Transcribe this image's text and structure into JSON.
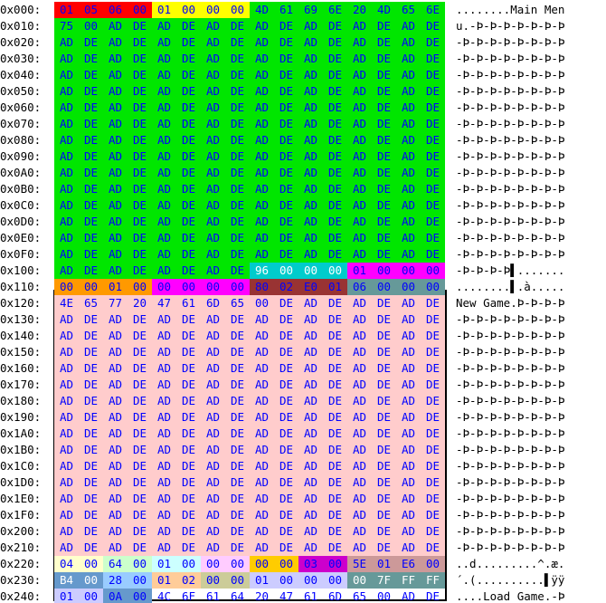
{
  "colors": {
    "green": "#00e600",
    "red": "#ff0000",
    "yellow": "#ffff00",
    "orange": "#ff9900",
    "teal": "#00cccc",
    "magenta": "#ff00ff",
    "brown": "#993333",
    "slate": "#669999",
    "pink": "#ffcccc",
    "lightyellow": "#ffffcc",
    "lightgreen": "#ccffcc",
    "lightcyan": "#ccffff",
    "lightpurple": "#ffccff",
    "gold": "#ffcc00",
    "purple": "#cc00cc",
    "mauve": "#cc9999",
    "periwinkle": "#99ccff",
    "steel": "#6699cc",
    "tan": "#ffcc99",
    "khaki": "#cccc99",
    "lavender": "#ccccff",
    "cadet": "#669999"
  },
  "rows": [
    {
      "addr": "0x000:",
      "bytes": [
        "01",
        "05",
        "06",
        "00",
        "01",
        "00",
        "00",
        "00",
        "4D",
        "61",
        "69",
        "6E",
        "20",
        "4D",
        "65",
        "6E"
      ],
      "ascii": "........Main Men"
    },
    {
      "addr": "0x010:",
      "bytes": [
        "75",
        "00",
        "AD",
        "DE",
        "AD",
        "DE",
        "AD",
        "DE",
        "AD",
        "DE",
        "AD",
        "DE",
        "AD",
        "DE",
        "AD",
        "DE"
      ],
      "ascii": "u.-Þ-Þ-Þ-Þ-Þ-Þ-Þ"
    },
    {
      "addr": "0x020:",
      "bytes": [
        "AD",
        "DE",
        "AD",
        "DE",
        "AD",
        "DE",
        "AD",
        "DE",
        "AD",
        "DE",
        "AD",
        "DE",
        "AD",
        "DE",
        "AD",
        "DE"
      ],
      "ascii": "-Þ-Þ-Þ-Þ-Þ-Þ-Þ-Þ"
    },
    {
      "addr": "0x030:",
      "bytes": [
        "AD",
        "DE",
        "AD",
        "DE",
        "AD",
        "DE",
        "AD",
        "DE",
        "AD",
        "DE",
        "AD",
        "DE",
        "AD",
        "DE",
        "AD",
        "DE"
      ],
      "ascii": "-Þ-Þ-Þ-Þ-Þ-Þ-Þ-Þ"
    },
    {
      "addr": "0x040:",
      "bytes": [
        "AD",
        "DE",
        "AD",
        "DE",
        "AD",
        "DE",
        "AD",
        "DE",
        "AD",
        "DE",
        "AD",
        "DE",
        "AD",
        "DE",
        "AD",
        "DE"
      ],
      "ascii": "-Þ-Þ-Þ-Þ-Þ-Þ-Þ-Þ"
    },
    {
      "addr": "0x050:",
      "bytes": [
        "AD",
        "DE",
        "AD",
        "DE",
        "AD",
        "DE",
        "AD",
        "DE",
        "AD",
        "DE",
        "AD",
        "DE",
        "AD",
        "DE",
        "AD",
        "DE"
      ],
      "ascii": "-Þ-Þ-Þ-Þ-Þ-Þ-Þ-Þ"
    },
    {
      "addr": "0x060:",
      "bytes": [
        "AD",
        "DE",
        "AD",
        "DE",
        "AD",
        "DE",
        "AD",
        "DE",
        "AD",
        "DE",
        "AD",
        "DE",
        "AD",
        "DE",
        "AD",
        "DE"
      ],
      "ascii": "-Þ-Þ-Þ-Þ-Þ-Þ-Þ-Þ"
    },
    {
      "addr": "0x070:",
      "bytes": [
        "AD",
        "DE",
        "AD",
        "DE",
        "AD",
        "DE",
        "AD",
        "DE",
        "AD",
        "DE",
        "AD",
        "DE",
        "AD",
        "DE",
        "AD",
        "DE"
      ],
      "ascii": "-Þ-Þ-Þ-Þ-Þ-Þ-Þ-Þ"
    },
    {
      "addr": "0x080:",
      "bytes": [
        "AD",
        "DE",
        "AD",
        "DE",
        "AD",
        "DE",
        "AD",
        "DE",
        "AD",
        "DE",
        "AD",
        "DE",
        "AD",
        "DE",
        "AD",
        "DE"
      ],
      "ascii": "-Þ-Þ-Þ-Þ-Þ-Þ-Þ-Þ"
    },
    {
      "addr": "0x090:",
      "bytes": [
        "AD",
        "DE",
        "AD",
        "DE",
        "AD",
        "DE",
        "AD",
        "DE",
        "AD",
        "DE",
        "AD",
        "DE",
        "AD",
        "DE",
        "AD",
        "DE"
      ],
      "ascii": "-Þ-Þ-Þ-Þ-Þ-Þ-Þ-Þ"
    },
    {
      "addr": "0x0A0:",
      "bytes": [
        "AD",
        "DE",
        "AD",
        "DE",
        "AD",
        "DE",
        "AD",
        "DE",
        "AD",
        "DE",
        "AD",
        "DE",
        "AD",
        "DE",
        "AD",
        "DE"
      ],
      "ascii": "-Þ-Þ-Þ-Þ-Þ-Þ-Þ-Þ"
    },
    {
      "addr": "0x0B0:",
      "bytes": [
        "AD",
        "DE",
        "AD",
        "DE",
        "AD",
        "DE",
        "AD",
        "DE",
        "AD",
        "DE",
        "AD",
        "DE",
        "AD",
        "DE",
        "AD",
        "DE"
      ],
      "ascii": "-Þ-Þ-Þ-Þ-Þ-Þ-Þ-Þ"
    },
    {
      "addr": "0x0C0:",
      "bytes": [
        "AD",
        "DE",
        "AD",
        "DE",
        "AD",
        "DE",
        "AD",
        "DE",
        "AD",
        "DE",
        "AD",
        "DE",
        "AD",
        "DE",
        "AD",
        "DE"
      ],
      "ascii": "-Þ-Þ-Þ-Þ-Þ-Þ-Þ-Þ"
    },
    {
      "addr": "0x0D0:",
      "bytes": [
        "AD",
        "DE",
        "AD",
        "DE",
        "AD",
        "DE",
        "AD",
        "DE",
        "AD",
        "DE",
        "AD",
        "DE",
        "AD",
        "DE",
        "AD",
        "DE"
      ],
      "ascii": "-Þ-Þ-Þ-Þ-Þ-Þ-Þ-Þ"
    },
    {
      "addr": "0x0E0:",
      "bytes": [
        "AD",
        "DE",
        "AD",
        "DE",
        "AD",
        "DE",
        "AD",
        "DE",
        "AD",
        "DE",
        "AD",
        "DE",
        "AD",
        "DE",
        "AD",
        "DE"
      ],
      "ascii": "-Þ-Þ-Þ-Þ-Þ-Þ-Þ-Þ"
    },
    {
      "addr": "0x0F0:",
      "bytes": [
        "AD",
        "DE",
        "AD",
        "DE",
        "AD",
        "DE",
        "AD",
        "DE",
        "AD",
        "DE",
        "AD",
        "DE",
        "AD",
        "DE",
        "AD",
        "DE"
      ],
      "ascii": "-Þ-Þ-Þ-Þ-Þ-Þ-Þ-Þ"
    },
    {
      "addr": "0x100:",
      "bytes": [
        "AD",
        "DE",
        "AD",
        "DE",
        "AD",
        "DE",
        "AD",
        "DE",
        "96",
        "00",
        "00",
        "00",
        "01",
        "00",
        "00",
        "00"
      ],
      "ascii": "-Þ-Þ-Þ-Þ▌......."
    },
    {
      "addr": "0x110:",
      "bytes": [
        "00",
        "00",
        "01",
        "00",
        "00",
        "00",
        "00",
        "00",
        "80",
        "02",
        "E0",
        "01",
        "06",
        "00",
        "00",
        "00"
      ],
      "ascii": "........▌.à....."
    },
    {
      "addr": "0x120:",
      "bytes": [
        "4E",
        "65",
        "77",
        "20",
        "47",
        "61",
        "6D",
        "65",
        "00",
        "DE",
        "AD",
        "DE",
        "AD",
        "DE",
        "AD",
        "DE"
      ],
      "ascii": "New Game.Þ-Þ-Þ-Þ"
    },
    {
      "addr": "0x130:",
      "bytes": [
        "AD",
        "DE",
        "AD",
        "DE",
        "AD",
        "DE",
        "AD",
        "DE",
        "AD",
        "DE",
        "AD",
        "DE",
        "AD",
        "DE",
        "AD",
        "DE"
      ],
      "ascii": "-Þ-Þ-Þ-Þ-Þ-Þ-Þ-Þ"
    },
    {
      "addr": "0x140:",
      "bytes": [
        "AD",
        "DE",
        "AD",
        "DE",
        "AD",
        "DE",
        "AD",
        "DE",
        "AD",
        "DE",
        "AD",
        "DE",
        "AD",
        "DE",
        "AD",
        "DE"
      ],
      "ascii": "-Þ-Þ-Þ-Þ-Þ-Þ-Þ-Þ"
    },
    {
      "addr": "0x150:",
      "bytes": [
        "AD",
        "DE",
        "AD",
        "DE",
        "AD",
        "DE",
        "AD",
        "DE",
        "AD",
        "DE",
        "AD",
        "DE",
        "AD",
        "DE",
        "AD",
        "DE"
      ],
      "ascii": "-Þ-Þ-Þ-Þ-Þ-Þ-Þ-Þ"
    },
    {
      "addr": "0x160:",
      "bytes": [
        "AD",
        "DE",
        "AD",
        "DE",
        "AD",
        "DE",
        "AD",
        "DE",
        "AD",
        "DE",
        "AD",
        "DE",
        "AD",
        "DE",
        "AD",
        "DE"
      ],
      "ascii": "-Þ-Þ-Þ-Þ-Þ-Þ-Þ-Þ"
    },
    {
      "addr": "0x170:",
      "bytes": [
        "AD",
        "DE",
        "AD",
        "DE",
        "AD",
        "DE",
        "AD",
        "DE",
        "AD",
        "DE",
        "AD",
        "DE",
        "AD",
        "DE",
        "AD",
        "DE"
      ],
      "ascii": "-Þ-Þ-Þ-Þ-Þ-Þ-Þ-Þ"
    },
    {
      "addr": "0x180:",
      "bytes": [
        "AD",
        "DE",
        "AD",
        "DE",
        "AD",
        "DE",
        "AD",
        "DE",
        "AD",
        "DE",
        "AD",
        "DE",
        "AD",
        "DE",
        "AD",
        "DE"
      ],
      "ascii": "-Þ-Þ-Þ-Þ-Þ-Þ-Þ-Þ"
    },
    {
      "addr": "0x190:",
      "bytes": [
        "AD",
        "DE",
        "AD",
        "DE",
        "AD",
        "DE",
        "AD",
        "DE",
        "AD",
        "DE",
        "AD",
        "DE",
        "AD",
        "DE",
        "AD",
        "DE"
      ],
      "ascii": "-Þ-Þ-Þ-Þ-Þ-Þ-Þ-Þ"
    },
    {
      "addr": "0x1A0:",
      "bytes": [
        "AD",
        "DE",
        "AD",
        "DE",
        "AD",
        "DE",
        "AD",
        "DE",
        "AD",
        "DE",
        "AD",
        "DE",
        "AD",
        "DE",
        "AD",
        "DE"
      ],
      "ascii": "-Þ-Þ-Þ-Þ-Þ-Þ-Þ-Þ"
    },
    {
      "addr": "0x1B0:",
      "bytes": [
        "AD",
        "DE",
        "AD",
        "DE",
        "AD",
        "DE",
        "AD",
        "DE",
        "AD",
        "DE",
        "AD",
        "DE",
        "AD",
        "DE",
        "AD",
        "DE"
      ],
      "ascii": "-Þ-Þ-Þ-Þ-Þ-Þ-Þ-Þ"
    },
    {
      "addr": "0x1C0:",
      "bytes": [
        "AD",
        "DE",
        "AD",
        "DE",
        "AD",
        "DE",
        "AD",
        "DE",
        "AD",
        "DE",
        "AD",
        "DE",
        "AD",
        "DE",
        "AD",
        "DE"
      ],
      "ascii": "-Þ-Þ-Þ-Þ-Þ-Þ-Þ-Þ"
    },
    {
      "addr": "0x1D0:",
      "bytes": [
        "AD",
        "DE",
        "AD",
        "DE",
        "AD",
        "DE",
        "AD",
        "DE",
        "AD",
        "DE",
        "AD",
        "DE",
        "AD",
        "DE",
        "AD",
        "DE"
      ],
      "ascii": "-Þ-Þ-Þ-Þ-Þ-Þ-Þ-Þ"
    },
    {
      "addr": "0x1E0:",
      "bytes": [
        "AD",
        "DE",
        "AD",
        "DE",
        "AD",
        "DE",
        "AD",
        "DE",
        "AD",
        "DE",
        "AD",
        "DE",
        "AD",
        "DE",
        "AD",
        "DE"
      ],
      "ascii": "-Þ-Þ-Þ-Þ-Þ-Þ-Þ-Þ"
    },
    {
      "addr": "0x1F0:",
      "bytes": [
        "AD",
        "DE",
        "AD",
        "DE",
        "AD",
        "DE",
        "AD",
        "DE",
        "AD",
        "DE",
        "AD",
        "DE",
        "AD",
        "DE",
        "AD",
        "DE"
      ],
      "ascii": "-Þ-Þ-Þ-Þ-Þ-Þ-Þ-Þ"
    },
    {
      "addr": "0x200:",
      "bytes": [
        "AD",
        "DE",
        "AD",
        "DE",
        "AD",
        "DE",
        "AD",
        "DE",
        "AD",
        "DE",
        "AD",
        "DE",
        "AD",
        "DE",
        "AD",
        "DE"
      ],
      "ascii": "-Þ-Þ-Þ-Þ-Þ-Þ-Þ-Þ"
    },
    {
      "addr": "0x210:",
      "bytes": [
        "AD",
        "DE",
        "AD",
        "DE",
        "AD",
        "DE",
        "AD",
        "DE",
        "AD",
        "DE",
        "AD",
        "DE",
        "AD",
        "DE",
        "AD",
        "DE"
      ],
      "ascii": "-Þ-Þ-Þ-Þ-Þ-Þ-Þ-Þ"
    },
    {
      "addr": "0x220:",
      "bytes": [
        "04",
        "00",
        "64",
        "00",
        "01",
        "00",
        "00",
        "00",
        "00",
        "00",
        "03",
        "00",
        "5E",
        "01",
        "E6",
        "00"
      ],
      "ascii": "..d.........^.æ."
    },
    {
      "addr": "0x230:",
      "bytes": [
        "B4",
        "00",
        "28",
        "00",
        "01",
        "02",
        "00",
        "00",
        "01",
        "00",
        "00",
        "00",
        "00",
        "7F",
        "FF",
        "FF"
      ],
      "ascii": "´.(..........▌ÿÿ"
    },
    {
      "addr": "0x240:",
      "bytes": [
        "01",
        "00",
        "0A",
        "00",
        "4C",
        "6F",
        "61",
        "64",
        "20",
        "47",
        "61",
        "6D",
        "65",
        "00",
        "AD",
        "DE"
      ],
      "ascii": "....Load Game.-Þ"
    }
  ],
  "regions": [
    {
      "start": 0,
      "end": 3,
      "bg": "red",
      "fg": "blue"
    },
    {
      "start": 4,
      "end": 7,
      "bg": "yellow",
      "fg": "blue"
    },
    {
      "start": 8,
      "end": 263,
      "bg": "green",
      "fg": "blue"
    },
    {
      "start": 264,
      "end": 267,
      "bg": "teal",
      "fg": "white"
    },
    {
      "start": 268,
      "end": 271,
      "bg": "magenta",
      "fg": "blue"
    },
    {
      "start": 272,
      "end": 275,
      "bg": "orange",
      "fg": "blue"
    },
    {
      "start": 276,
      "end": 279,
      "bg": "magenta",
      "fg": "blue"
    },
    {
      "start": 280,
      "end": 283,
      "bg": "brown",
      "fg": "blue"
    },
    {
      "start": 284,
      "end": 287,
      "bg": "slate",
      "fg": "blue"
    },
    {
      "start": 288,
      "end": 543,
      "bg": "pink",
      "fg": "blue"
    },
    {
      "start": 544,
      "end": 545,
      "bg": "lightyellow",
      "fg": "blue"
    },
    {
      "start": 546,
      "end": 547,
      "bg": "lightgreen",
      "fg": "blue"
    },
    {
      "start": 548,
      "end": 549,
      "bg": "lightcyan",
      "fg": "blue"
    },
    {
      "start": 550,
      "end": 551,
      "bg": "lightpurple",
      "fg": "blue"
    },
    {
      "start": 552,
      "end": 553,
      "bg": "gold",
      "fg": "blue"
    },
    {
      "start": 554,
      "end": 555,
      "bg": "purple",
      "fg": "blue"
    },
    {
      "start": 556,
      "end": 559,
      "bg": "mauve",
      "fg": "blue"
    },
    {
      "start": 560,
      "end": 561,
      "bg": "steel",
      "fg": "white"
    },
    {
      "start": 562,
      "end": 563,
      "bg": "periwinkle",
      "fg": "blue"
    },
    {
      "start": 564,
      "end": 565,
      "bg": "tan",
      "fg": "blue"
    },
    {
      "start": 566,
      "end": 567,
      "bg": "khaki",
      "fg": "blue"
    },
    {
      "start": 568,
      "end": 571,
      "bg": "lavender",
      "fg": "blue"
    },
    {
      "start": 572,
      "end": 575,
      "bg": "cadet",
      "fg": "white"
    },
    {
      "start": 576,
      "end": 577,
      "bg": "lavender",
      "fg": "blue"
    },
    {
      "start": 578,
      "end": 579,
      "bg": "steel",
      "fg": "blue"
    }
  ]
}
